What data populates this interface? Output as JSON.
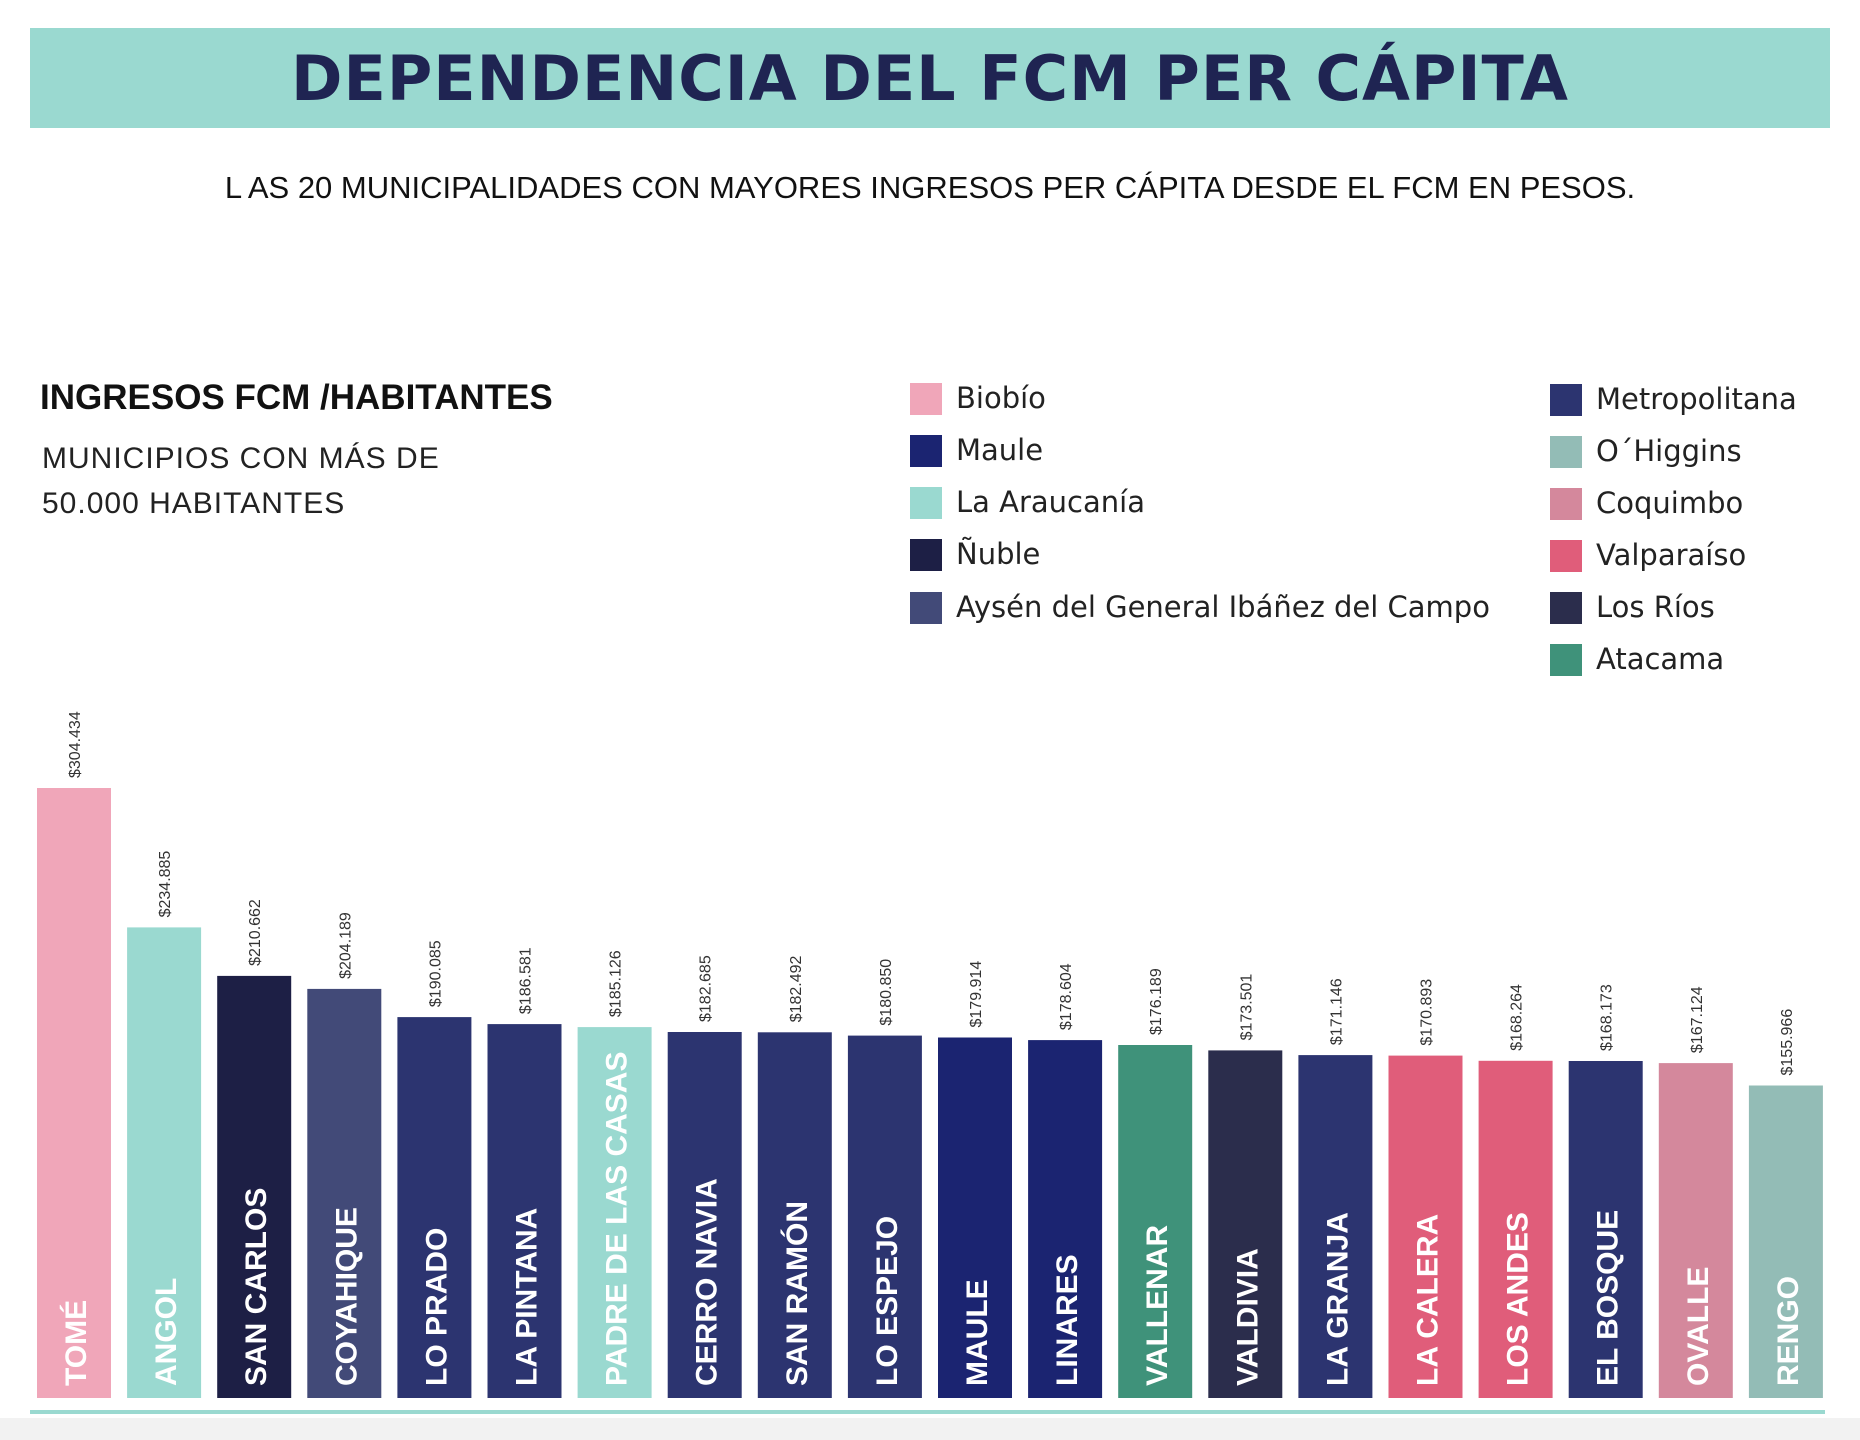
{
  "header": {
    "title": "DEPENDENCIA DEL FCM PER CÁPITA",
    "subtitle": "L AS 20 MUNICIPALIDADES CON MAYORES INGRESOS PER CÁPITA DESDE EL FCM EN PESOS."
  },
  "chart_heading": "INGRESOS FCM /HABITANTES",
  "chart_note": "MUNICIPIOS CON MÁS DE 50.000 HABITANTES",
  "legend": [
    {
      "name": "Biobío",
      "color": "#f0a6b9"
    },
    {
      "name": "Maule",
      "color": "#1b2471"
    },
    {
      "name": "La Araucanía",
      "color": "#9ad9d0"
    },
    {
      "name": "Ñuble",
      "color": "#1d1f45"
    },
    {
      "name": "Aysén  del General Ibáñez del Campo",
      "color": "#424a78"
    },
    {
      "name": "Metropolitana",
      "color": "#2c3470"
    },
    {
      "name": "O´Higgins",
      "color": "#93bcb6"
    },
    {
      "name": "Coquimbo",
      "color": "#d4889c"
    },
    {
      "name": "Valparaíso",
      "color": "#e05d7a"
    },
    {
      "name": "Los Ríos",
      "color": "#2b2d4c"
    },
    {
      "name": "Atacama",
      "color": "#3f927a"
    }
  ],
  "chart_data": {
    "type": "bar",
    "title": "INGRESOS FCM /HABITANTES",
    "categories": [
      "TOMÉ",
      "ANGOL",
      "SAN CARLOS",
      "COYAHIQUE",
      "LO PRADO",
      "LA PINTANA",
      "PADRE DE LAS CASAS",
      "CERRO NAVIA",
      "SAN RAMÓN",
      "LO ESPEJO",
      "MAULE",
      "LINARES",
      "VALLENAR",
      "VALDIVIA",
      "LA GRANJA",
      "LA CALERA",
      "LOS ANDES",
      "EL BOSQUE",
      "OVALLE",
      "RENGO"
    ],
    "values": [
      304434,
      234885,
      210662,
      204189,
      190085,
      186581,
      185126,
      182685,
      182492,
      180850,
      179914,
      178604,
      176189,
      173501,
      171146,
      170893,
      168264,
      168173,
      167124,
      155966
    ],
    "value_labels": [
      "$304.434",
      "$234.885",
      "$210.662",
      "$204.189",
      "$190.085",
      "$186.581",
      "$185.126",
      "$182.685",
      "$182.492",
      "$180.850",
      "$179.914",
      "$178.604",
      "$176.189",
      "$173.501",
      "$171.146",
      "$170.893",
      "$168.264",
      "$168.173",
      "$167.124",
      "$155.966"
    ],
    "regions": [
      "Biobío",
      "La Araucanía",
      "Ñuble",
      "Aysén  del General Ibáñez del Campo",
      "Metropolitana",
      "Metropolitana",
      "La Araucanía",
      "Metropolitana",
      "Metropolitana",
      "Metropolitana",
      "Maule",
      "Maule",
      "Atacama",
      "Los Ríos",
      "Metropolitana",
      "Valparaíso",
      "Valparaíso",
      "Metropolitana",
      "Coquimbo",
      "O´Higgins"
    ],
    "ylim": [
      0,
      304434
    ],
    "grid": false,
    "legend_position": "top-right"
  }
}
